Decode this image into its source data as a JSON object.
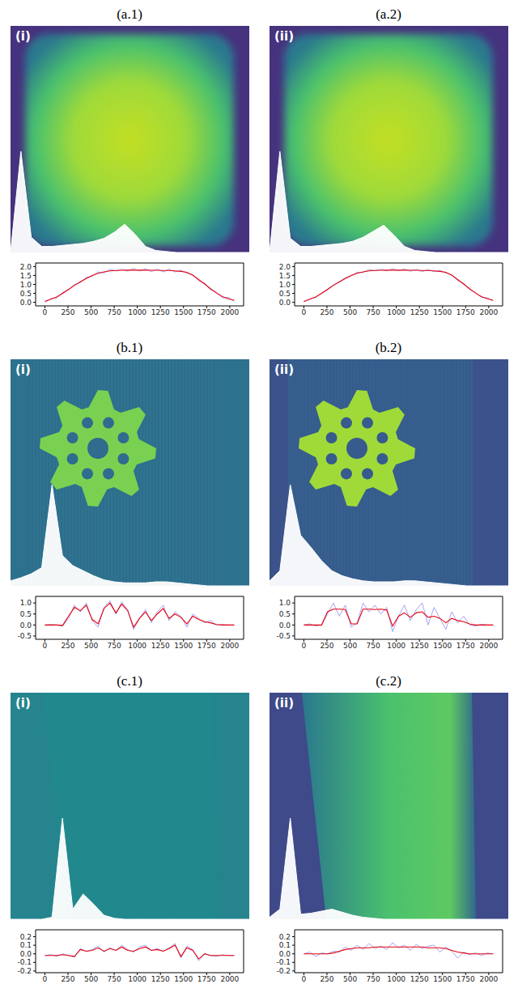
{
  "chart_data": [
    {
      "type": "line",
      "title": "(a.1)",
      "annotation": "(i)",
      "x": [
        0,
        64,
        128,
        192,
        256,
        320,
        384,
        448,
        512,
        576,
        640,
        704,
        768,
        832,
        896,
        960,
        1024,
        1088,
        1152,
        1216,
        1280,
        1344,
        1408,
        1472,
        1536,
        1600,
        1664,
        1728,
        1792,
        1856,
        1920,
        1984,
        2048
      ],
      "series": [
        {
          "color": "#8c8cf0",
          "values": [
            0.0,
            0.2,
            0.25,
            0.55,
            0.7,
            1.0,
            1.1,
            1.4,
            1.45,
            1.7,
            1.65,
            1.85,
            1.75,
            1.85,
            1.75,
            1.9,
            1.75,
            1.88,
            1.72,
            1.86,
            1.7,
            1.85,
            1.7,
            1.8,
            1.62,
            1.55,
            1.2,
            1.08,
            0.7,
            0.58,
            0.25,
            0.28,
            0.05
          ]
        },
        {
          "color": "#e8000b",
          "values": [
            0.05,
            0.17,
            0.3,
            0.5,
            0.72,
            0.95,
            1.15,
            1.33,
            1.5,
            1.62,
            1.7,
            1.76,
            1.78,
            1.79,
            1.8,
            1.8,
            1.8,
            1.8,
            1.79,
            1.79,
            1.78,
            1.78,
            1.76,
            1.73,
            1.68,
            1.52,
            1.27,
            1.02,
            0.76,
            0.52,
            0.32,
            0.2,
            0.12
          ]
        }
      ],
      "xlim": [
        -100,
        2150
      ],
      "xticks": [
        0,
        250,
        500,
        750,
        1000,
        1250,
        1500,
        1750,
        2000
      ],
      "ylim": [
        -0.2,
        2.2
      ],
      "yticks": [
        {
          "value": 0,
          "label": "0.0"
        },
        0.5,
        {
          "value": 1,
          "label": "1.0"
        },
        1.5,
        {
          "value": 2,
          "label": "2.0"
        }
      ],
      "histogram": {
        "values": [
          0,
          1.0,
          0.15,
          0.06,
          0.06,
          0.07,
          0.08,
          0.09,
          0.11,
          0.14,
          0.2,
          0.28,
          0.18,
          0.06,
          0.02,
          0.01,
          0,
          0,
          0,
          0,
          0,
          0,
          0,
          0
        ],
        "ylim": [
          0,
          1
        ]
      }
    },
    {
      "type": "line",
      "title": "(a.2)",
      "annotation": "(ii)",
      "x": [
        0,
        64,
        128,
        192,
        256,
        320,
        384,
        448,
        512,
        576,
        640,
        704,
        768,
        832,
        896,
        960,
        1024,
        1088,
        1152,
        1216,
        1280,
        1344,
        1408,
        1472,
        1536,
        1600,
        1664,
        1728,
        1792,
        1856,
        1920,
        1984,
        2048
      ],
      "series": [
        {
          "color": "#8c8cf0",
          "values": [
            0.02,
            0.18,
            0.28,
            0.52,
            0.74,
            0.98,
            1.12,
            1.38,
            1.48,
            1.68,
            1.67,
            1.83,
            1.77,
            1.84,
            1.76,
            1.88,
            1.77,
            1.86,
            1.74,
            1.84,
            1.72,
            1.83,
            1.72,
            1.78,
            1.64,
            1.53,
            1.22,
            1.06,
            0.72,
            0.56,
            0.27,
            0.26,
            0.07
          ]
        },
        {
          "color": "#e8000b",
          "values": [
            0.05,
            0.17,
            0.3,
            0.5,
            0.72,
            0.95,
            1.15,
            1.33,
            1.5,
            1.62,
            1.7,
            1.76,
            1.78,
            1.79,
            1.8,
            1.8,
            1.8,
            1.8,
            1.79,
            1.79,
            1.78,
            1.78,
            1.76,
            1.73,
            1.68,
            1.52,
            1.27,
            1.02,
            0.76,
            0.52,
            0.32,
            0.2,
            0.12
          ]
        }
      ],
      "xlim": [
        -100,
        2150
      ],
      "xticks": [
        0,
        250,
        500,
        750,
        1000,
        1250,
        1500,
        1750,
        2000
      ],
      "ylim": [
        -0.2,
        2.2
      ],
      "yticks": [
        {
          "value": 0,
          "label": "0.0"
        },
        0.5,
        {
          "value": 1,
          "label": "1.0"
        },
        1.5,
        {
          "value": 2,
          "label": "2.0"
        }
      ],
      "histogram": {
        "values": [
          0,
          1.0,
          0.14,
          0.06,
          0.06,
          0.07,
          0.08,
          0.09,
          0.11,
          0.15,
          0.21,
          0.27,
          0.17,
          0.06,
          0.02,
          0.01,
          0,
          0,
          0,
          0,
          0,
          0,
          0,
          0
        ],
        "ylim": [
          0,
          1
        ]
      }
    },
    {
      "type": "line",
      "title": "(b.1)",
      "annotation": "(i)",
      "x": [
        0,
        64,
        128,
        192,
        256,
        320,
        384,
        448,
        512,
        576,
        640,
        704,
        768,
        832,
        896,
        960,
        1024,
        1088,
        1152,
        1216,
        1280,
        1344,
        1408,
        1472,
        1536,
        1600,
        1664,
        1728,
        1792,
        1856,
        1920,
        1984,
        2048
      ],
      "series": [
        {
          "color": "#8c8cf0",
          "values": [
            0,
            0.02,
            0,
            -0.05,
            0.3,
            0.9,
            0.6,
            1.0,
            0.2,
            -0.1,
            0.8,
            1.1,
            0.5,
            1.05,
            0.7,
            -0.2,
            0.3,
            0.7,
            0.1,
            0.6,
            0.9,
            0.2,
            0.6,
            0.4,
            -0.1,
            0.5,
            0.3,
            0.1,
            0.2,
            0,
            0.02,
            0,
            0
          ]
        },
        {
          "color": "#e8000b",
          "values": [
            0,
            0,
            0,
            -0.02,
            0.4,
            0.8,
            0.65,
            0.9,
            0.25,
            0.05,
            0.75,
            1.0,
            0.55,
            0.95,
            0.65,
            -0.1,
            0.3,
            0.6,
            0.2,
            0.5,
            0.75,
            0.3,
            0.5,
            0.35,
            0.05,
            0.4,
            0.25,
            0.15,
            0.1,
            0.02,
            0,
            0,
            0
          ]
        }
      ],
      "xlim": [
        -100,
        2150
      ],
      "xticks": [
        0,
        250,
        500,
        750,
        1000,
        1250,
        1500,
        1750,
        2000
      ],
      "ylim": [
        -0.65,
        1.3
      ],
      "yticks": [
        -0.5,
        {
          "value": 0,
          "label": "0.0"
        },
        0.5,
        {
          "value": 1,
          "label": "1.0"
        }
      ],
      "histogram": {
        "values": [
          0.05,
          0.08,
          0.12,
          0.18,
          1.0,
          0.3,
          0.2,
          0.15,
          0.1,
          0.06,
          0.04,
          0.03,
          0.03,
          0.03,
          0.04,
          0.04,
          0.03,
          0.02,
          0.01,
          0,
          0,
          0,
          0,
          0
        ],
        "ylim": [
          0,
          1
        ]
      }
    },
    {
      "type": "line",
      "title": "(b.2)",
      "annotation": "(ii)",
      "x": [
        0,
        64,
        128,
        192,
        256,
        320,
        384,
        448,
        512,
        576,
        640,
        704,
        768,
        832,
        896,
        960,
        1024,
        1088,
        1152,
        1216,
        1280,
        1344,
        1408,
        1472,
        1536,
        1600,
        1664,
        1728,
        1792,
        1856,
        1920,
        1984,
        2048
      ],
      "series": [
        {
          "color": "#8c8cf0",
          "values": [
            0,
            0.05,
            -0.05,
            0,
            0.5,
            1.0,
            0.4,
            0.9,
            -0.1,
            0.1,
            1.0,
            0.6,
            0.9,
            0.5,
            0.8,
            -0.3,
            0.4,
            0.9,
            0.2,
            0.7,
            1.0,
            0.0,
            0.8,
            0.3,
            -0.2,
            0.6,
            0.1,
            0.4,
            0.0,
            -0.05,
            0.03,
            0,
            0
          ]
        },
        {
          "color": "#e8000b",
          "values": [
            0,
            0,
            0,
            0,
            0.6,
            0.72,
            0.72,
            0.7,
            0.05,
            0.05,
            0.72,
            0.72,
            0.7,
            0.72,
            0.68,
            -0.05,
            0.4,
            0.55,
            0.35,
            0.55,
            0.6,
            0.35,
            0.4,
            0.3,
            0.1,
            0.3,
            0.2,
            0.15,
            0.05,
            0,
            0,
            0,
            0
          ]
        }
      ],
      "xlim": [
        -100,
        2150
      ],
      "xticks": [
        0,
        250,
        500,
        750,
        1000,
        1250,
        1500,
        1750,
        2000
      ],
      "ylim": [
        -0.65,
        1.3
      ],
      "yticks": [
        -0.5,
        {
          "value": 0,
          "label": "0.0"
        },
        0.5,
        {
          "value": 1,
          "label": "1.0"
        }
      ],
      "histogram": {
        "values": [
          0.05,
          0.15,
          1.0,
          0.5,
          0.38,
          0.25,
          0.15,
          0.1,
          0.07,
          0.05,
          0.04,
          0.04,
          0.04,
          0.05,
          0.05,
          0.04,
          0.03,
          0.02,
          0.01,
          0,
          0,
          0,
          0,
          0
        ],
        "ylim": [
          0,
          1
        ]
      }
    },
    {
      "type": "line",
      "title": "(c.1)",
      "annotation": "(i)",
      "x": [
        0,
        64,
        128,
        192,
        256,
        320,
        384,
        448,
        512,
        576,
        640,
        704,
        768,
        832,
        896,
        960,
        1024,
        1088,
        1152,
        1216,
        1280,
        1344,
        1408,
        1472,
        1536,
        1600,
        1664,
        1728,
        1792,
        1856,
        1920,
        1984,
        2048
      ],
      "series": [
        {
          "color": "#8c8cf0",
          "values": [
            -0.02,
            -0.01,
            -0.03,
            0,
            -0.02,
            -0.04,
            0.06,
            0.03,
            0.05,
            0.09,
            0.02,
            0.07,
            0.04,
            0.1,
            0.05,
            0.02,
            0.08,
            0.1,
            0.04,
            0.06,
            0.03,
            0.07,
            0.12,
            -0.05,
            0.09,
            0.05,
            -0.08,
            0.0,
            -0.02,
            -0.03,
            -0.01,
            -0.02,
            -0.02
          ]
        },
        {
          "color": "#e8000b",
          "values": [
            -0.02,
            -0.02,
            -0.02,
            -0.01,
            -0.02,
            -0.03,
            0.05,
            0.03,
            0.04,
            0.07,
            0.03,
            0.06,
            0.04,
            0.08,
            0.04,
            0.03,
            0.06,
            0.08,
            0.04,
            0.05,
            0.03,
            0.06,
            0.1,
            -0.03,
            0.07,
            0.04,
            -0.06,
            0.0,
            -0.02,
            -0.02,
            -0.02,
            -0.02,
            -0.02
          ]
        }
      ],
      "xlim": [
        -100,
        2150
      ],
      "xticks": [
        0,
        250,
        500,
        750,
        1000,
        1250,
        1500,
        1750,
        2000
      ],
      "ylim": [
        -0.22,
        0.28
      ],
      "yticks": [
        -0.2,
        -0.1,
        {
          "value": 0,
          "label": "0.0"
        },
        0.1,
        0.2
      ],
      "histogram": {
        "values": [
          0,
          0,
          0,
          0,
          0.02,
          1.0,
          0.1,
          0.25,
          0.15,
          0.04,
          0.01,
          0,
          0,
          0,
          0,
          0,
          0,
          0,
          0,
          0,
          0,
          0,
          0,
          0
        ],
        "ylim": [
          0,
          1
        ]
      }
    },
    {
      "type": "line",
      "title": "(c.2)",
      "annotation": "(ii)",
      "x": [
        0,
        64,
        128,
        192,
        256,
        320,
        384,
        448,
        512,
        576,
        640,
        704,
        768,
        832,
        896,
        960,
        1024,
        1088,
        1152,
        1216,
        1280,
        1344,
        1408,
        1472,
        1536,
        1600,
        1664,
        1728,
        1792,
        1856,
        1920,
        1984,
        2048
      ],
      "series": [
        {
          "color": "#8c8cf0",
          "values": [
            0.0,
            0.02,
            -0.03,
            0.01,
            0.0,
            0.03,
            0.02,
            0.08,
            0.04,
            0.1,
            0.05,
            0.12,
            0.06,
            0.09,
            0.05,
            0.13,
            0.07,
            0.1,
            0.04,
            0.11,
            0.06,
            0.09,
            0.1,
            0.02,
            0.08,
            0.03,
            -0.05,
            0.02,
            -0.01,
            0.01,
            -0.02,
            0.01,
            0
          ]
        },
        {
          "color": "#e8000b",
          "values": [
            0,
            0,
            0,
            0,
            0,
            0.01,
            0.03,
            0.05,
            0.06,
            0.07,
            0.07,
            0.07,
            0.08,
            0.08,
            0.08,
            0.08,
            0.08,
            0.08,
            0.08,
            0.08,
            0.08,
            0.07,
            0.07,
            0.07,
            0.06,
            0.04,
            0.02,
            0.01,
            0,
            0,
            0,
            0,
            0
          ]
        }
      ],
      "xlim": [
        -100,
        2150
      ],
      "xticks": [
        0,
        250,
        500,
        750,
        1000,
        1250,
        1500,
        1750,
        2000
      ],
      "ylim": [
        -0.22,
        0.28
      ],
      "yticks": [
        -0.2,
        -0.1,
        {
          "value": 0,
          "label": "0.0"
        },
        0.1,
        0.2
      ],
      "histogram": {
        "values": [
          0.02,
          0.1,
          1.0,
          0.05,
          0.06,
          0.08,
          0.1,
          0.07,
          0.04,
          0.02,
          0.01,
          0,
          0,
          0,
          0,
          0,
          0,
          0,
          0,
          0,
          0,
          0,
          0,
          0
        ],
        "ylim": [
          0,
          1
        ]
      }
    }
  ]
}
